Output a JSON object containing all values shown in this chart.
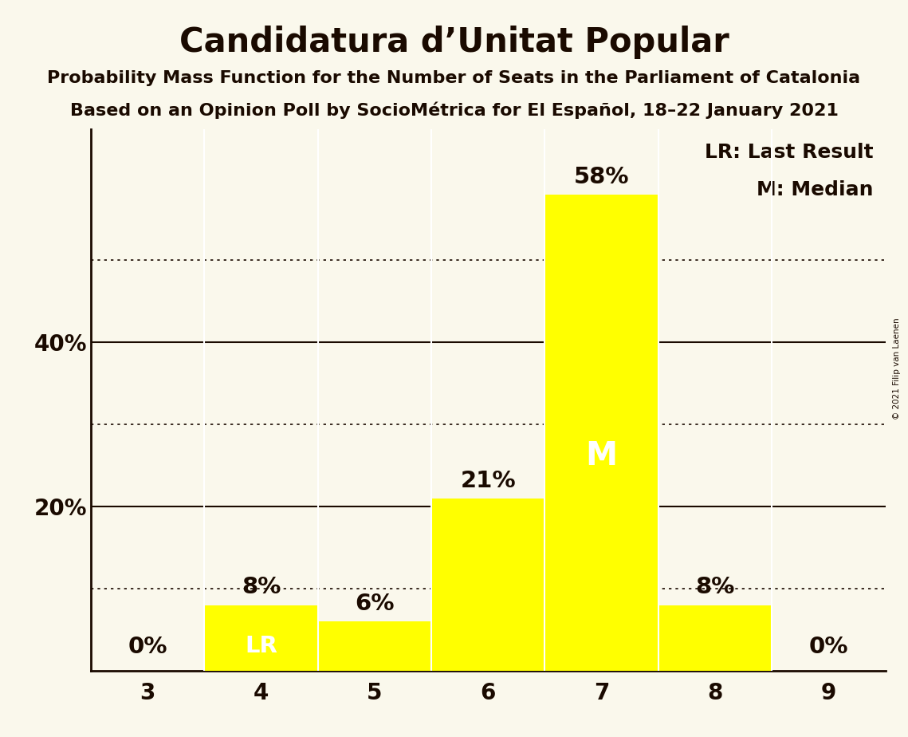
{
  "title": "Candidatura d’Unitat Popular",
  "subtitle1": "Probability Mass Function for the Number of Seats in the Parliament of Catalonia",
  "subtitle2": "Based on an Opinion Poll by SocioMétrica for El Español, 18–22 January 2021",
  "copyright": "© 2021 Filip van Laenen",
  "categories": [
    3,
    4,
    5,
    6,
    7,
    8,
    9
  ],
  "values": [
    0,
    8,
    6,
    21,
    58,
    8,
    0
  ],
  "bar_color": "#ffff00",
  "bar_edge_color": "#ffffff",
  "background_color": "#faf8ec",
  "text_color": "#1a0a00",
  "ylabel_ticks": [
    20,
    40
  ],
  "dotted_lines": [
    10,
    30,
    50
  ],
  "solid_lines": [
    20,
    40
  ],
  "lr_index": 1,
  "median_index": 4,
  "legend_lr": "LR: Last Result",
  "legend_m": "M: Median",
  "title_fontsize": 30,
  "subtitle_fontsize": 16,
  "tick_fontsize": 20,
  "label_fontsize": 18,
  "annotation_fontsize": 21,
  "text_color_inside": "#ffffff",
  "ylim": [
    0,
    66
  ]
}
